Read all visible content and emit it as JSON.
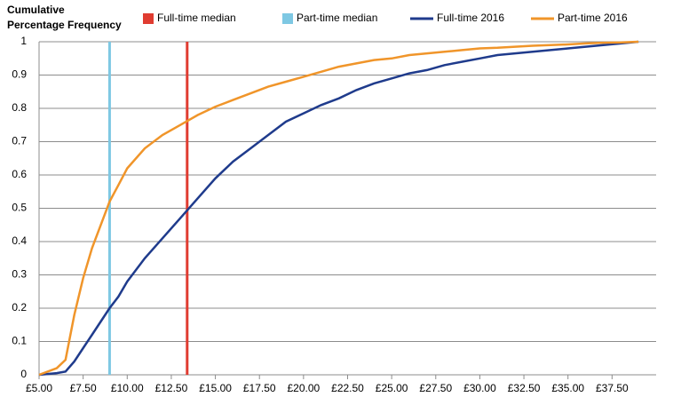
{
  "chart_data": {
    "type": "line",
    "y_label": [
      "Cumulative",
      "Percentage Frequency"
    ],
    "x": [
      5,
      6,
      6.5,
      7,
      7.5,
      8,
      8.5,
      9,
      9.5,
      10,
      11,
      12,
      13,
      14,
      15,
      16,
      17,
      18,
      19,
      20,
      21,
      22,
      23,
      24,
      25,
      26,
      27,
      28,
      29,
      30,
      31,
      32,
      33,
      34,
      35,
      36,
      37,
      38,
      39
    ],
    "reference_lines": [
      {
        "name": "Full-time median",
        "color": "#e03c31",
        "x": 13.4
      },
      {
        "name": "Part-time median",
        "color": "#7ec8e3",
        "x": 9.0
      }
    ],
    "series": [
      {
        "name": "Full-time 2016",
        "color": "#1f3b8c",
        "values": [
          0,
          0.005,
          0.01,
          0.04,
          0.08,
          0.12,
          0.16,
          0.2,
          0.235,
          0.28,
          0.35,
          0.41,
          0.47,
          0.53,
          0.59,
          0.64,
          0.68,
          0.72,
          0.76,
          0.785,
          0.81,
          0.83,
          0.855,
          0.875,
          0.89,
          0.905,
          0.915,
          0.93,
          0.94,
          0.95,
          0.96,
          0.965,
          0.97,
          0.975,
          0.98,
          0.985,
          0.99,
          0.995,
          1
        ]
      },
      {
        "name": "Part-time 2016",
        "color": "#f0952a",
        "values": [
          0,
          0.02,
          0.045,
          0.18,
          0.29,
          0.38,
          0.45,
          0.52,
          0.57,
          0.62,
          0.68,
          0.72,
          0.75,
          0.78,
          0.805,
          0.825,
          0.845,
          0.865,
          0.88,
          0.895,
          0.91,
          0.925,
          0.935,
          0.945,
          0.95,
          0.96,
          0.965,
          0.97,
          0.975,
          0.98,
          0.982,
          0.985,
          0.988,
          0.99,
          0.992,
          0.995,
          0.997,
          0.998,
          1
        ]
      }
    ],
    "xlim": [
      5,
      40
    ],
    "xticks": [
      {
        "value": 5,
        "label": "£5.00"
      },
      {
        "value": 7.5,
        "label": "£7.50"
      },
      {
        "value": 10,
        "label": "£10.00"
      },
      {
        "value": 12.5,
        "label": "£12.50"
      },
      {
        "value": 15,
        "label": "£15.00"
      },
      {
        "value": 17.5,
        "label": "£17.50"
      },
      {
        "value": 20,
        "label": "£20.00"
      },
      {
        "value": 22.5,
        "label": "£22.50"
      },
      {
        "value": 25,
        "label": "£25.00"
      },
      {
        "value": 27.5,
        "label": "£27.50"
      },
      {
        "value": 30,
        "label": "£30.00"
      },
      {
        "value": 32.5,
        "label": "£32.50"
      },
      {
        "value": 35,
        "label": "£35.00"
      },
      {
        "value": 37.5,
        "label": "£37.50"
      }
    ],
    "ylim": [
      0,
      1
    ],
    "yticks": [
      0,
      0.1,
      0.2,
      0.3,
      0.4,
      0.5,
      0.6,
      0.7,
      0.8,
      0.9,
      1
    ],
    "grid": true
  }
}
